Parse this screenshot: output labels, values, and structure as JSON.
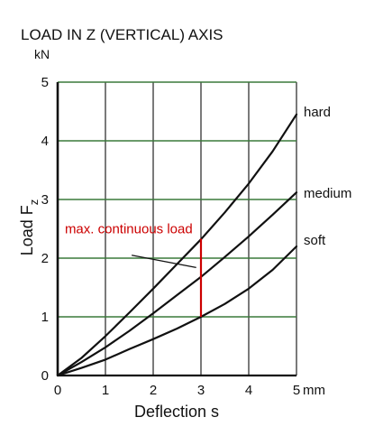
{
  "chart_data": {
    "type": "line",
    "title": "LOAD IN Z (VERTICAL) AXIS",
    "y_unit": "kN",
    "x_unit": "mm",
    "xlabel": "Deflection s",
    "ylabel": "Load F",
    "ylabel_subscript": "z",
    "xlim": [
      0,
      5
    ],
    "ylim": [
      0,
      5
    ],
    "x_ticks": [
      "0",
      "1",
      "2",
      "3",
      "4",
      "5"
    ],
    "y_ticks": [
      "0",
      "1",
      "2",
      "3",
      "4",
      "5"
    ],
    "grid": true,
    "grid_color": "#3a7a3a",
    "series": [
      {
        "name": "hard",
        "x": [
          0,
          0.5,
          1,
          1.5,
          2,
          2.5,
          3,
          3.5,
          4,
          4.5,
          5
        ],
        "y": [
          0,
          0.3,
          0.67,
          1.07,
          1.48,
          1.9,
          2.32,
          2.78,
          3.27,
          3.82,
          4.45
        ]
      },
      {
        "name": "medium",
        "x": [
          0,
          0.5,
          1,
          1.5,
          2,
          2.5,
          3,
          3.5,
          4,
          4.5,
          5
        ],
        "y": [
          0,
          0.23,
          0.48,
          0.76,
          1.06,
          1.37,
          1.68,
          2.02,
          2.37,
          2.74,
          3.12
        ]
      },
      {
        "name": "soft",
        "x": [
          0,
          0.5,
          1,
          1.5,
          2,
          2.5,
          3,
          3.5,
          4,
          4.5,
          5
        ],
        "y": [
          0,
          0.13,
          0.27,
          0.45,
          0.62,
          0.8,
          1.0,
          1.22,
          1.48,
          1.8,
          2.2
        ]
      }
    ],
    "annotation": {
      "text": "max. continuous load",
      "color": "#cc0000",
      "x": 3,
      "y_top": 2.33,
      "y_bottom": 1.0,
      "pointer_from": [
        1.55,
        2.05
      ],
      "pointer_to": [
        2.9,
        1.84
      ]
    }
  }
}
